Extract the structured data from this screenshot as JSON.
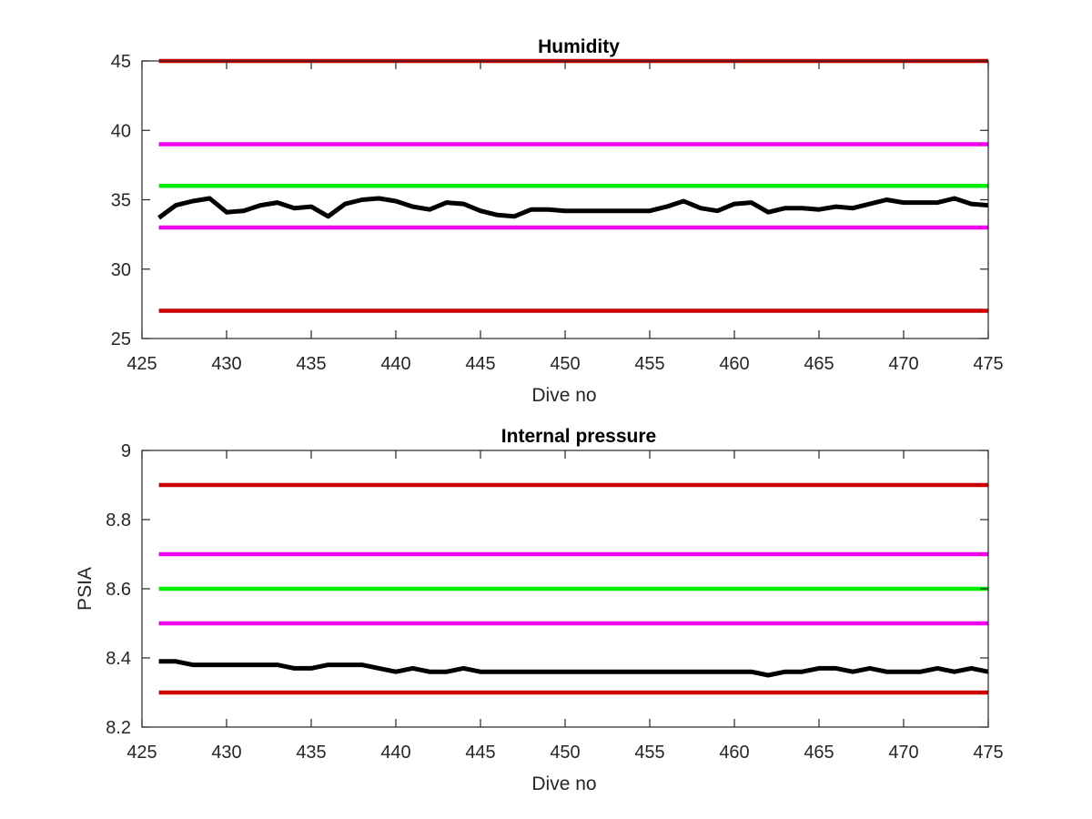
{
  "colors": {
    "data_line": "#000000",
    "red_limit": "#cc0000",
    "magenta_limit": "#ee00ee",
    "green_target": "#00ee00",
    "axes": "#262626"
  },
  "chart_data": [
    {
      "type": "line",
      "title": "Humidity",
      "xlabel": "Dive no",
      "ylabel": "",
      "xlim": [
        425,
        475
      ],
      "ylim": [
        25,
        45
      ],
      "xticks": [
        425,
        430,
        435,
        440,
        445,
        450,
        455,
        460,
        465,
        470,
        475
      ],
      "yticks": [
        25,
        30,
        35,
        40,
        45
      ],
      "xtick_labels": [
        "425",
        "430",
        "435",
        "440",
        "445",
        "450",
        "455",
        "460",
        "465",
        "470",
        "475"
      ],
      "ytick_labels": [
        "25",
        "30",
        "35",
        "40",
        "45"
      ],
      "grid": false,
      "series": [
        {
          "color_key": "data_line",
          "x": [
            426,
            427,
            428,
            429,
            430,
            431,
            432,
            433,
            434,
            435,
            436,
            437,
            438,
            439,
            440,
            441,
            442,
            443,
            444,
            445,
            446,
            447,
            448,
            449,
            450,
            451,
            452,
            453,
            454,
            455,
            456,
            457,
            458,
            459,
            460,
            461,
            462,
            463,
            464,
            465,
            466,
            467,
            468,
            469,
            470,
            471,
            472,
            473,
            474,
            475
          ],
          "y": [
            33.7,
            34.6,
            34.9,
            35.1,
            34.1,
            34.2,
            34.6,
            34.8,
            34.4,
            34.5,
            33.8,
            34.7,
            35.0,
            35.1,
            34.9,
            34.5,
            34.3,
            34.8,
            34.7,
            34.2,
            33.9,
            33.8,
            34.3,
            34.3,
            34.2,
            34.2,
            34.2,
            34.2,
            34.2,
            34.2,
            34.5,
            34.9,
            34.4,
            34.2,
            34.7,
            34.8,
            34.1,
            34.4,
            34.4,
            34.3,
            34.5,
            34.4,
            34.7,
            35.0,
            34.8,
            34.8,
            34.8,
            35.1,
            34.7,
            34.6
          ]
        },
        {
          "color_key": "red_limit",
          "x": [
            426,
            475
          ],
          "y": [
            45,
            45
          ]
        },
        {
          "color_key": "magenta_limit",
          "x": [
            426,
            475
          ],
          "y": [
            39,
            39
          ]
        },
        {
          "color_key": "green_target",
          "x": [
            426,
            475
          ],
          "y": [
            36,
            36
          ]
        },
        {
          "color_key": "magenta_limit",
          "x": [
            426,
            475
          ],
          "y": [
            33,
            33
          ]
        },
        {
          "color_key": "red_limit",
          "x": [
            426,
            475
          ],
          "y": [
            27,
            27
          ]
        }
      ]
    },
    {
      "type": "line",
      "title": "Internal pressure",
      "xlabel": "Dive no",
      "ylabel": "PSIA",
      "xlim": [
        425,
        475
      ],
      "ylim": [
        8.2,
        9
      ],
      "xticks": [
        425,
        430,
        435,
        440,
        445,
        450,
        455,
        460,
        465,
        470,
        475
      ],
      "yticks": [
        8.2,
        8.4,
        8.6,
        8.8,
        9
      ],
      "xtick_labels": [
        "425",
        "430",
        "435",
        "440",
        "445",
        "450",
        "455",
        "460",
        "465",
        "470",
        "475"
      ],
      "ytick_labels": [
        "8.2",
        "8.4",
        "8.6",
        "8.8",
        "9"
      ],
      "grid": false,
      "series": [
        {
          "color_key": "data_line",
          "x": [
            426,
            427,
            428,
            429,
            430,
            431,
            432,
            433,
            434,
            435,
            436,
            437,
            438,
            439,
            440,
            441,
            442,
            443,
            444,
            445,
            446,
            447,
            448,
            449,
            450,
            451,
            452,
            453,
            454,
            455,
            456,
            457,
            458,
            459,
            460,
            461,
            462,
            463,
            464,
            465,
            466,
            467,
            468,
            469,
            470,
            471,
            472,
            473,
            474,
            475
          ],
          "y": [
            8.39,
            8.39,
            8.38,
            8.38,
            8.38,
            8.38,
            8.38,
            8.38,
            8.37,
            8.37,
            8.38,
            8.38,
            8.38,
            8.37,
            8.36,
            8.37,
            8.36,
            8.36,
            8.37,
            8.36,
            8.36,
            8.36,
            8.36,
            8.36,
            8.36,
            8.36,
            8.36,
            8.36,
            8.36,
            8.36,
            8.36,
            8.36,
            8.36,
            8.36,
            8.36,
            8.36,
            8.35,
            8.36,
            8.36,
            8.37,
            8.37,
            8.36,
            8.37,
            8.36,
            8.36,
            8.36,
            8.37,
            8.36,
            8.37,
            8.36
          ]
        },
        {
          "color_key": "red_limit",
          "x": [
            426,
            475
          ],
          "y": [
            8.9,
            8.9
          ]
        },
        {
          "color_key": "magenta_limit",
          "x": [
            426,
            475
          ],
          "y": [
            8.7,
            8.7
          ]
        },
        {
          "color_key": "green_target",
          "x": [
            426,
            475
          ],
          "y": [
            8.6,
            8.6
          ]
        },
        {
          "color_key": "magenta_limit",
          "x": [
            426,
            475
          ],
          "y": [
            8.5,
            8.5
          ]
        },
        {
          "color_key": "red_limit",
          "x": [
            426,
            475
          ],
          "y": [
            8.3,
            8.3
          ]
        }
      ]
    }
  ]
}
